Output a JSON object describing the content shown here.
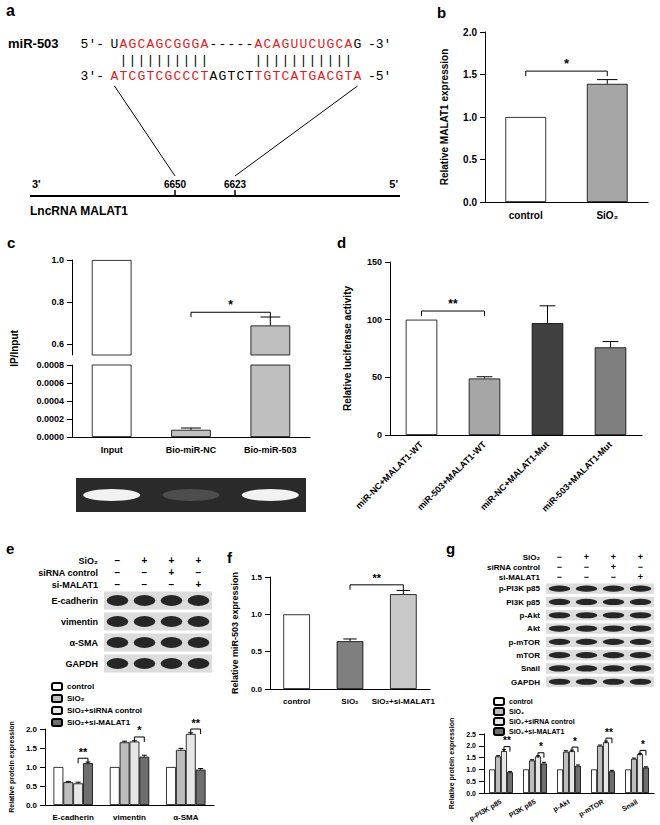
{
  "diagram": {
    "panel": "a",
    "mirna": "miR-503",
    "mirna_strand": {
      "start": "5'-",
      "end": "-3'",
      "segments": [
        {
          "text": "U",
          "color": "#000000"
        },
        {
          "text": "AGCAGCGGGA",
          "color": "#e31a1c"
        },
        {
          "text": "-----",
          "color": "#000000"
        },
        {
          "text": "ACAGUUCUGCA",
          "color": "#e31a1c"
        },
        {
          "text": "G",
          "color": "#000000"
        }
      ]
    },
    "pairing": " ||||||||||     ||||||||||| ",
    "target_strand": {
      "start": "3'-",
      "end": "-5'",
      "segments": [
        {
          "text": "ATCGTCGCCCT",
          "color": "#e31a1c"
        },
        {
          "text": "AGTCT",
          "color": "#000000"
        },
        {
          "text": "TGTCATGACGTA",
          "color": "#e31a1c"
        }
      ]
    },
    "lncrna": "LncRNA MALAT1",
    "lncrna_left": "3'",
    "lncrna_right": "5'",
    "sites": [
      6650,
      6623
    ]
  },
  "blots": [
    {
      "panel": "e",
      "conditions": [
        {
          "label": "SiO₂",
          "signs": [
            "−",
            "+",
            "+",
            "+"
          ]
        },
        {
          "label": "siRNA control",
          "signs": [
            "−",
            "−",
            "+",
            "−"
          ]
        },
        {
          "label": "si-MALAT1",
          "signs": [
            "−",
            "−",
            "−",
            "+"
          ]
        }
      ],
      "rows": [
        "E-cadherin",
        "vimentin",
        "α-SMA",
        "GAPDH"
      ]
    },
    {
      "panel": "g",
      "conditions": [
        {
          "label": "SiO₂",
          "signs": [
            "−",
            "+",
            "+",
            "+"
          ]
        },
        {
          "label": "siRNA control",
          "signs": [
            "−",
            "−",
            "+",
            "−"
          ]
        },
        {
          "label": "si-MALAT1",
          "signs": [
            "−",
            "−",
            "−",
            "+"
          ]
        }
      ],
      "rows": [
        "p-PI3K p85",
        "PI3K p85",
        "p-Akt",
        "Akt",
        "p-mTOR",
        "mTOR",
        "Snail",
        "GAPDH"
      ]
    }
  ],
  "chart_data": [
    {
      "panel": "b",
      "type": "bar",
      "categories": [
        "control",
        "SiO₂"
      ],
      "values": [
        1.0,
        1.39
      ],
      "errors": [
        0,
        0.05
      ],
      "colors": [
        "#ffffff",
        "#a6a6a6"
      ],
      "y_label": "Relative MALAT1 expression",
      "ylim": [
        0,
        2
      ],
      "yticks": [
        {
          "value": 0,
          "label": "0.0"
        },
        0.5,
        {
          "value": 1,
          "label": "1.0"
        },
        1.5,
        {
          "value": 2,
          "label": "2.0"
        }
      ],
      "annotations": [
        {
          "text": "*",
          "between": [
            "control",
            "SiO₂"
          ]
        }
      ]
    },
    {
      "panel": "c",
      "type": "bar",
      "categories": [
        "Input",
        "Bio-miR-NC",
        "Bio-miR-503"
      ],
      "values": [
        1.0,
        8e-05,
        0.69
      ],
      "errors": [
        0,
        2e-05,
        0.04
      ],
      "colors": [
        "#ffffff",
        "#bfbfbf",
        "#bfbfbf"
      ],
      "y_label": "IP/Input",
      "ylim": [
        0,
        1
      ],
      "y_break": [
        0.0008,
        0.55
      ],
      "yticks": [
        {
          "value": 0,
          "label": "0.0000"
        },
        0.0002,
        0.0004,
        0.0006,
        0.0008,
        0.6,
        0.8,
        {
          "value": 1,
          "label": "1.0"
        }
      ],
      "annotations": [
        {
          "text": "*",
          "between": [
            "Bio-miR-NC",
            "Bio-miR-503"
          ]
        }
      ]
    },
    {
      "panel": "d",
      "type": "bar",
      "categories": [
        "miR-NC+MALAT1-WT",
        "miR-503+MALAT1-WT",
        "miR-NC+MALAT1-Mut",
        "miR-503+MALAT1-Mut"
      ],
      "values": [
        100,
        49,
        97,
        76
      ],
      "errors": [
        0,
        1.5,
        15,
        5
      ],
      "colors": [
        "#ffffff",
        "#a6a6a6",
        "#404040",
        "#7f7f7f"
      ],
      "y_label": "Relative luciferase activity",
      "ylim": [
        0,
        150
      ],
      "yticks": [
        0,
        50,
        100,
        150
      ],
      "annotations": [
        {
          "text": "**",
          "between": [
            "miR-NC+MALAT1-WT",
            "miR-503+MALAT1-WT"
          ]
        }
      ]
    },
    {
      "type": "bar",
      "categories": [
        "E-cadherin",
        "vimentin",
        "α-SMA"
      ],
      "series": [
        {
          "name": "control",
          "color": "#ffffff",
          "values": [
            1.0,
            1.0,
            1.0
          ],
          "errors": [
            0,
            0,
            0
          ]
        },
        {
          "name": "SiO₂",
          "color": "#bdbdbd",
          "values": [
            0.6,
            1.65,
            1.45
          ],
          "errors": [
            0.02,
            0.03,
            0.04
          ]
        },
        {
          "name": "SiO₂+siRNA control",
          "color": "#e6e6e6",
          "values": [
            0.57,
            1.67,
            1.87
          ],
          "errors": [
            0.03,
            0.02,
            0.03
          ]
        },
        {
          "name": "SiO₂+si-MALAT1",
          "color": "#6e6e6e",
          "values": [
            1.1,
            1.27,
            0.93
          ],
          "errors": [
            0.03,
            0.04,
            0.03
          ]
        }
      ],
      "y_label": "Relative protein expression",
      "ylim": [
        0,
        2
      ],
      "yticks": [
        {
          "value": 0,
          "label": "0.0"
        },
        0.5,
        {
          "value": 1,
          "label": "1.0"
        },
        1.5,
        {
          "value": 2,
          "label": "2.0"
        }
      ],
      "legend": "upper left",
      "annotations": [
        {
          "text": "**",
          "category": "E-cadherin",
          "between": [
            "SiO₂+siRNA control",
            "SiO₂+si-MALAT1"
          ]
        },
        {
          "text": "*",
          "category": "vimentin",
          "between": [
            "SiO₂+siRNA control",
            "SiO₂+si-MALAT1"
          ]
        },
        {
          "text": "**",
          "category": "α-SMA",
          "between": [
            "SiO₂+siRNA control",
            "SiO₂+si-MALAT1"
          ]
        }
      ]
    },
    {
      "panel": "f",
      "type": "bar",
      "categories": [
        "control",
        "SiO₂",
        "SiO₂+si-MALAT1"
      ],
      "values": [
        1.0,
        0.64,
        1.27
      ],
      "errors": [
        0,
        0.03,
        0.05
      ],
      "colors": [
        "#ffffff",
        "#7f7f7f",
        "#c8c8c8"
      ],
      "y_label": "Relative miR-503 expression",
      "ylim": [
        0,
        1.5
      ],
      "yticks": [
        {
          "value": 0,
          "label": "0.0"
        },
        0.5,
        {
          "value": 1,
          "label": "1.0"
        },
        1.5
      ],
      "annotations": [
        {
          "text": "**",
          "between": [
            "SiO₂",
            "SiO₂+si-MALAT1"
          ]
        }
      ]
    },
    {
      "type": "bar",
      "categories": [
        "p-PI3K p85",
        "PI3K p85",
        "p-Akt",
        "p-mTOR",
        "Snail"
      ],
      "series": [
        {
          "name": "control",
          "color": "#ffffff",
          "values": [
            1.0,
            1.0,
            1.0,
            1.0,
            1.0
          ],
          "errors": [
            0,
            0,
            0,
            0,
            0
          ]
        },
        {
          "name": "SiO₂",
          "color": "#bdbdbd",
          "values": [
            1.55,
            1.38,
            1.75,
            2.0,
            1.45
          ],
          "errors": [
            0.03,
            0.03,
            0.04,
            0.03,
            0.03
          ]
        },
        {
          "name": "SiO₂+siRNA control",
          "color": "#e6e6e6",
          "values": [
            1.78,
            1.55,
            1.78,
            2.15,
            1.65
          ],
          "errors": [
            0.06,
            0.03,
            0.04,
            0.05,
            0.03
          ]
        },
        {
          "name": "SiO₂+si-MALAT1",
          "color": "#6e6e6e",
          "values": [
            0.88,
            1.25,
            1.15,
            0.92,
            1.08
          ],
          "errors": [
            0.03,
            0.05,
            0.04,
            0.04,
            0.03
          ]
        }
      ],
      "y_label": "Relative protein expression",
      "ylim": [
        0,
        2.5
      ],
      "yticks": [
        {
          "value": 0,
          "label": "0.0"
        },
        0.5,
        {
          "value": 1,
          "label": "1.0"
        },
        1.5,
        {
          "value": 2,
          "label": "2.0"
        },
        2.5
      ],
      "legend": "upper left",
      "annotations": [
        {
          "text": "**",
          "category": "p-PI3K p85",
          "between": [
            "SiO₂+siRNA control",
            "SiO₂+si-MALAT1"
          ]
        },
        {
          "text": "*",
          "category": "PI3K p85",
          "between": [
            "SiO₂+siRNA control",
            "SiO₂+si-MALAT1"
          ]
        },
        {
          "text": "*",
          "category": "p-Akt",
          "between": [
            "SiO₂+siRNA control",
            "SiO₂+si-MALAT1"
          ]
        },
        {
          "text": "**",
          "category": "p-mTOR",
          "between": [
            "SiO₂+siRNA control",
            "SiO₂+si-MALAT1"
          ]
        },
        {
          "text": "*",
          "category": "Snail",
          "between": [
            "SiO₂+siRNA control",
            "SiO₂+si-MALAT1"
          ]
        }
      ]
    }
  ]
}
